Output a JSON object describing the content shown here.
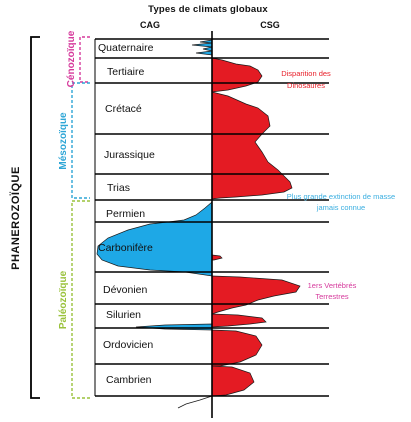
{
  "title": "Types de climats globaux",
  "columns": {
    "left": "CAG",
    "right": "CSG"
  },
  "eon": "PHANEROZOÏQUE",
  "eras": [
    {
      "id": "cenozoic",
      "label": "Cénozoïque",
      "color": "#d63a9c"
    },
    {
      "id": "mesozoic",
      "label": "Mésozoïque",
      "color": "#2ea6d6"
    },
    {
      "id": "paleozoic",
      "label": "Paléozoïque",
      "color": "#9ac23c"
    }
  ],
  "periods": [
    "Quaternaire",
    "Tertiaire",
    "Crétacé",
    "Jurassique",
    "Trias",
    "Permien",
    "Carbonifère",
    "Dévonien",
    "Silurien",
    "Ordovicien",
    "Cambrien"
  ],
  "annotations": [
    {
      "id": "dinosaurs",
      "lines": [
        "Disparition des",
        "Dinosaures"
      ],
      "color": "#e8202a"
    },
    {
      "id": "extinction",
      "lines": [
        "Plus grande extinction de masse",
        "jamais connue"
      ],
      "color": "#3aaee0"
    },
    {
      "id": "vertebrates",
      "lines": [
        "1ers Vertébrés",
        "Terrestres"
      ],
      "color": "#d63a9c"
    }
  ],
  "colors": {
    "cag_fill": "#1ea8e6",
    "csg_fill": "#e41b23",
    "line": "#000000"
  }
}
